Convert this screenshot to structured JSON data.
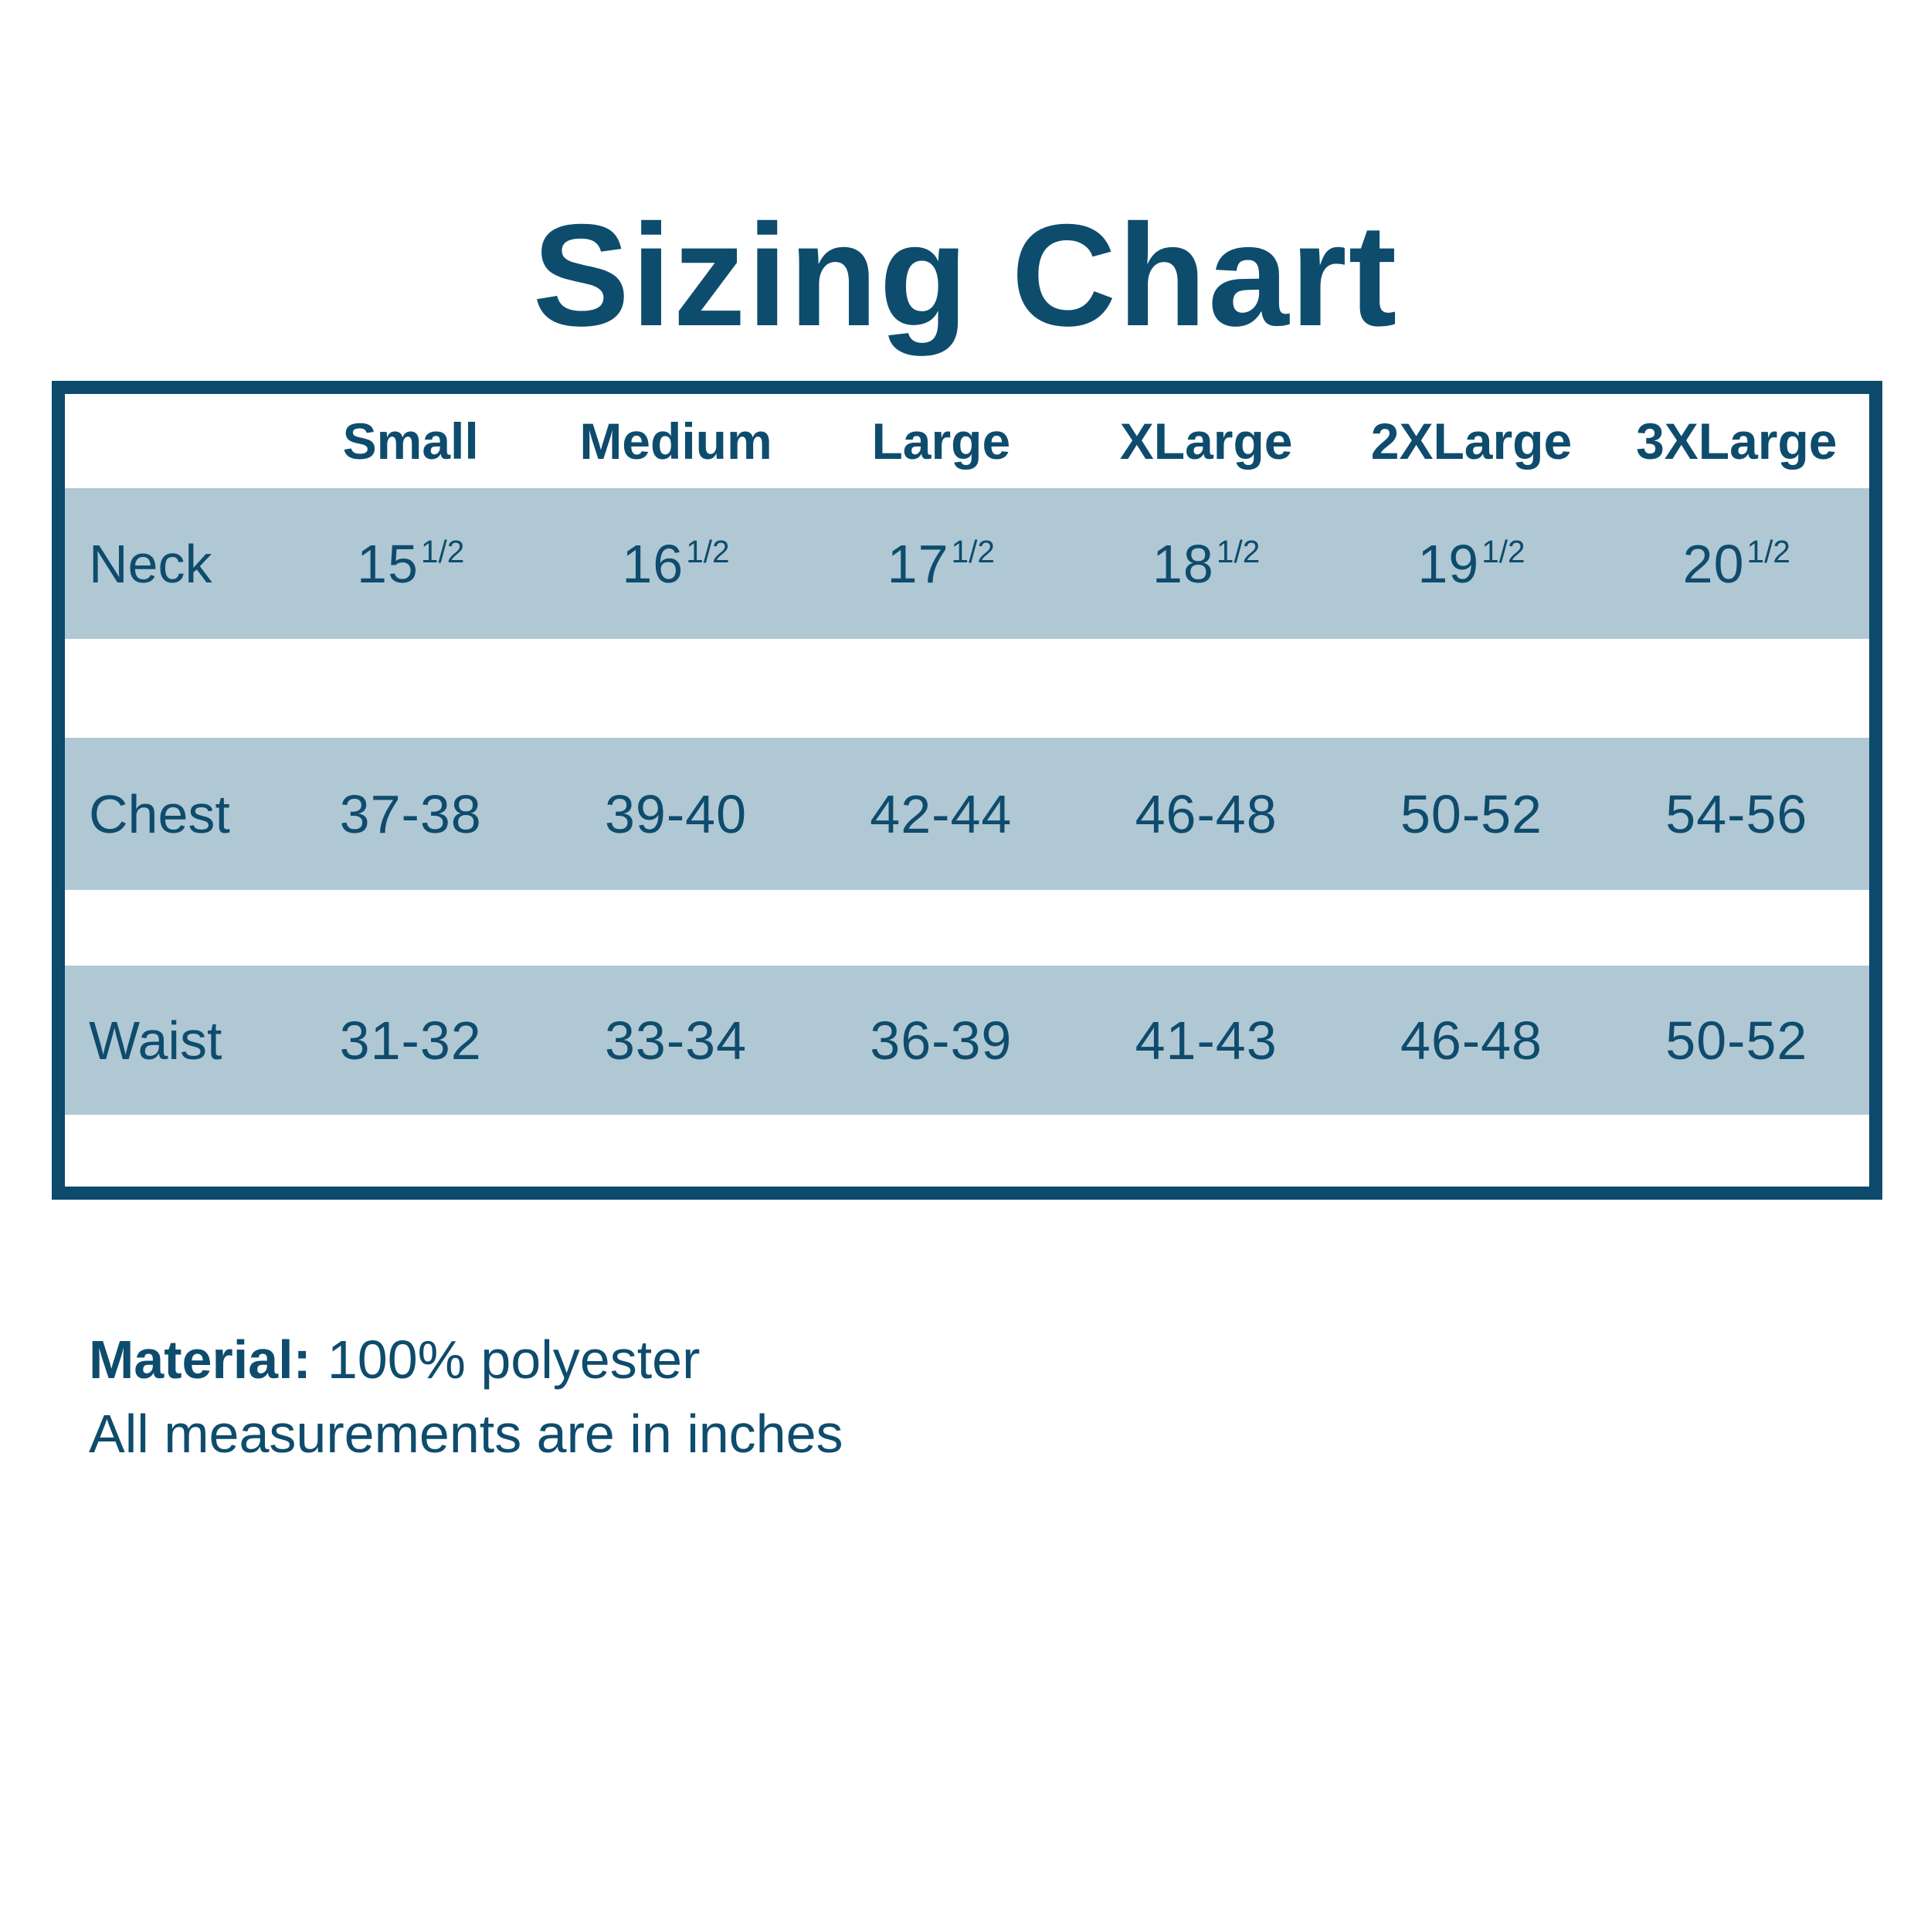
{
  "title": "Sizing Chart",
  "colors": {
    "text_dark_blue": "#0e4c6d",
    "table_border_dark_blue": "#0d4a6b",
    "row_band_light_blue": "#b0c8d4",
    "background": "#ffffff"
  },
  "table": {
    "size_headers": [
      "Small",
      "Medium",
      "Large",
      "XLarge",
      "2XLarge",
      "3XLarge"
    ],
    "rows": [
      {
        "label": "Neck",
        "values": [
          {
            "base": "15",
            "sup": "1/2"
          },
          {
            "base": "16",
            "sup": "1/2"
          },
          {
            "base": "17",
            "sup": "1/2"
          },
          {
            "base": "18",
            "sup": "1/2"
          },
          {
            "base": "19",
            "sup": "1/2"
          },
          {
            "base": "20",
            "sup": "1/2"
          }
        ]
      },
      {
        "label": "Chest",
        "values": [
          {
            "base": "37-38"
          },
          {
            "base": "39-40"
          },
          {
            "base": "42-44"
          },
          {
            "base": "46-48"
          },
          {
            "base": "50-52"
          },
          {
            "base": "54-56"
          }
        ]
      },
      {
        "label": "Waist",
        "values": [
          {
            "base": "31-32"
          },
          {
            "base": "33-34"
          },
          {
            "base": "36-39"
          },
          {
            "base": "41-43"
          },
          {
            "base": "46-48"
          },
          {
            "base": "50-52"
          }
        ]
      }
    ]
  },
  "footer": {
    "material_label": "Material:",
    "material_value": "100% polyester",
    "note": "All measurements are in inches"
  }
}
